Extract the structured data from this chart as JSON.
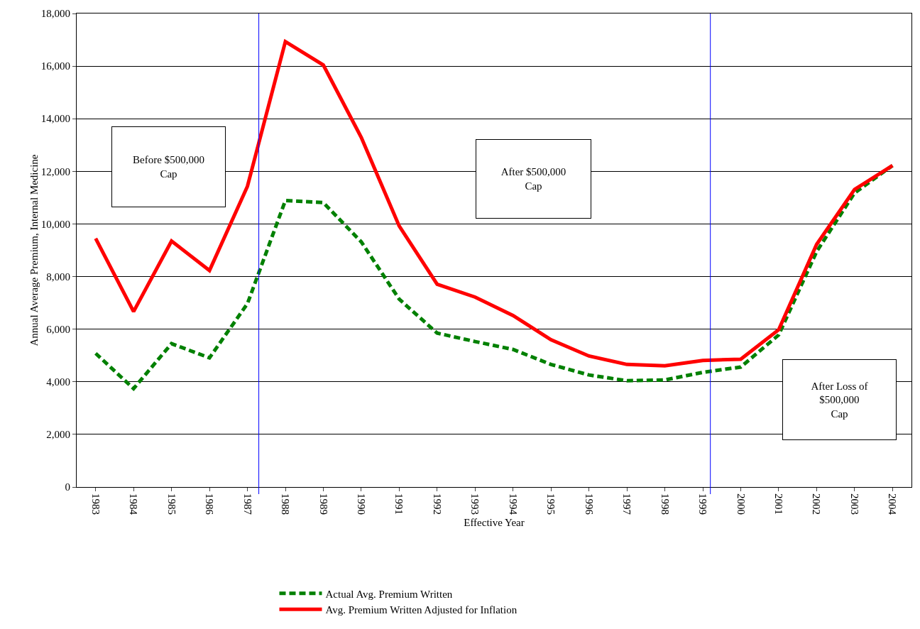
{
  "chart_data": {
    "type": "line",
    "xlabel": "Effective Year",
    "ylabel": "Annual Average Premium, Internal Medicine",
    "x": [
      1983,
      1984,
      1985,
      1986,
      1987,
      1988,
      1989,
      1990,
      1991,
      1992,
      1993,
      1994,
      1995,
      1996,
      1997,
      1998,
      1999,
      2000,
      2001,
      2002,
      2003,
      2004
    ],
    "series": [
      {
        "name": "Actual Avg. Premium Written",
        "color": "#008000",
        "line_style": "dashed",
        "values": [
          5080,
          3740,
          5450,
          4910,
          6970,
          10890,
          10810,
          9320,
          7140,
          5850,
          5530,
          5230,
          4660,
          4260,
          4040,
          4070,
          4360,
          4560,
          5780,
          8950,
          11180,
          12220
        ]
      },
      {
        "name": "Avg. Premium Written Adjusted for Inflation",
        "color": "#ff0000",
        "line_style": "solid",
        "values": [
          9450,
          6670,
          9350,
          8230,
          11430,
          16930,
          16040,
          13290,
          9920,
          7710,
          7220,
          6520,
          5600,
          4980,
          4660,
          4610,
          4810,
          4860,
          5980,
          9220,
          11310,
          12220
        ]
      }
    ],
    "xlim": [
      1982.5,
      2004.5
    ],
    "xticks": [
      1983,
      1984,
      1985,
      1986,
      1987,
      1988,
      1989,
      1990,
      1991,
      1992,
      1993,
      1994,
      1995,
      1996,
      1997,
      1998,
      1999,
      2000,
      2001,
      2002,
      2003,
      2004
    ],
    "ylim": [
      0,
      18000
    ],
    "yticks": [
      0,
      {
        "value": 2000,
        "label": "2,000"
      },
      {
        "value": 4000,
        "label": "4,000"
      },
      {
        "value": 6000,
        "label": "6,000"
      },
      {
        "value": 8000,
        "label": "8,000"
      },
      {
        "value": 10000,
        "label": "10,000"
      },
      {
        "value": 12000,
        "label": "12,000"
      },
      {
        "value": 14000,
        "label": "14,000"
      },
      {
        "value": 16000,
        "label": "16,000"
      },
      {
        "value": 18000,
        "label": "18,000"
      }
    ],
    "ref_lines": [
      {
        "axis": "x",
        "value": 1987.3,
        "color": "#0000ff"
      },
      {
        "axis": "x",
        "value": 1999.2,
        "color": "#0000ff"
      }
    ],
    "annotations": [
      "Before $500,000\nCap",
      "After $500,000\nCap",
      "After Loss of\n$500,000\nCap"
    ],
    "grid": "y",
    "legend": "bottom",
    "marker": "none"
  }
}
